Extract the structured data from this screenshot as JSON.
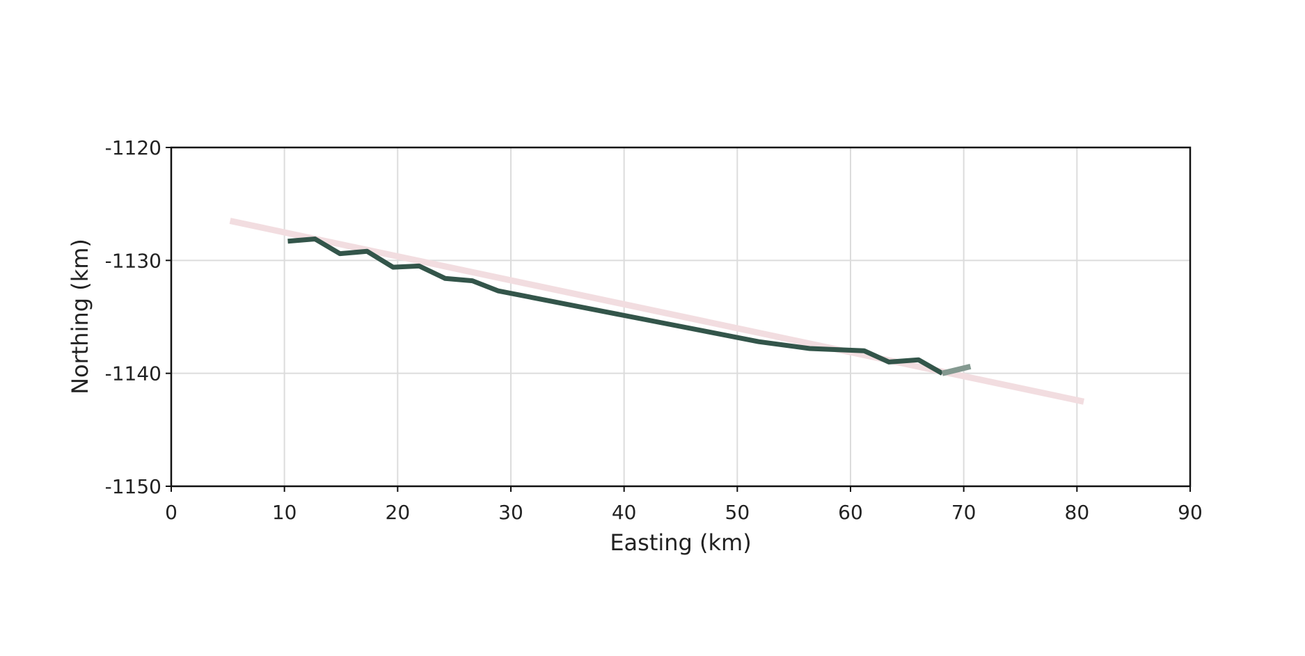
{
  "chart_data": {
    "type": "line",
    "title": "",
    "xlabel": "Easting (km)",
    "ylabel": "Northing (km)",
    "xlim": [
      0,
      90
    ],
    "ylim": [
      -1150,
      -1120
    ],
    "xticks": [
      0,
      10,
      20,
      30,
      40,
      50,
      60,
      70,
      80,
      90
    ],
    "yticks": [
      -1150,
      -1140,
      -1130,
      -1120
    ],
    "grid": true,
    "series": [
      {
        "role": "background-trend",
        "color": "#f2dde0",
        "x": [
          5.2,
          80.6
        ],
        "y": [
          -1126.5,
          -1142.5
        ]
      },
      {
        "role": "main-track",
        "color": "#33554a",
        "x": [
          10.3,
          12.7,
          14.9,
          17.3,
          19.6,
          21.9,
          24.2,
          26.6,
          28.9,
          33.5,
          38.1,
          42.7,
          47.3,
          51.9,
          56.4,
          61.2,
          63.4,
          66.0,
          68.1
        ],
        "y": [
          -1128.3,
          -1128.1,
          -1129.4,
          -1129.2,
          -1130.6,
          -1130.5,
          -1131.6,
          -1131.8,
          -1132.7,
          -1133.6,
          -1134.5,
          -1135.4,
          -1136.3,
          -1137.2,
          -1137.8,
          -1138.0,
          -1139.0,
          -1138.8,
          -1140.0
        ]
      },
      {
        "role": "track-extension",
        "color": "#849990",
        "x": [
          68.1,
          70.6
        ],
        "y": [
          -1140.0,
          -1139.4
        ]
      }
    ]
  }
}
